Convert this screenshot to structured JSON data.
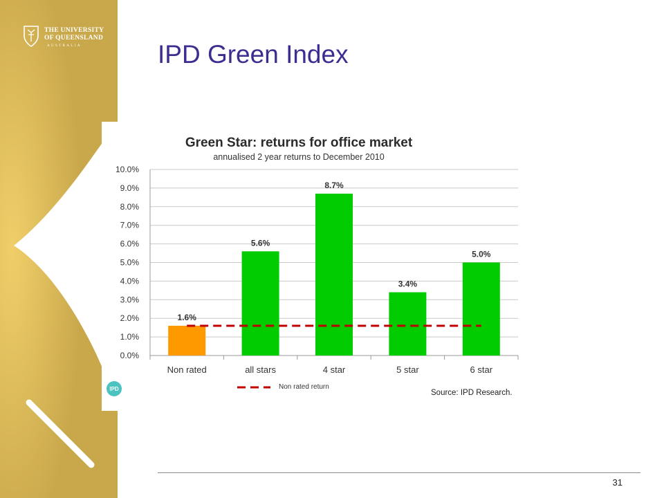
{
  "branding": {
    "logo_line1": "THE UNIVERSITY",
    "logo_line2": "OF QUEENSLAND",
    "logo_line3": "AUSTRALIA",
    "sidebar_color": "#c9a84c",
    "sidebar_highlight": "#f0cf6a"
  },
  "slide": {
    "title": "IPD Green Index",
    "page_number": "31",
    "title_color": "#3c2d91"
  },
  "chart_data": {
    "type": "bar",
    "title": "Green Star: returns for office market",
    "subtitle": "annualised 2 year returns to December 2010",
    "categories": [
      "Non rated",
      "all stars",
      "4 star",
      "5 star",
      "6 star"
    ],
    "values": [
      1.6,
      5.6,
      8.7,
      3.4,
      5.0
    ],
    "value_labels": [
      "1.6%",
      "5.6%",
      "8.7%",
      "3.4%",
      "5.0%"
    ],
    "bar_colors": [
      "#ff9900",
      "#00cc00",
      "#00cc00",
      "#00cc00",
      "#00cc00"
    ],
    "ylim": [
      0,
      10
    ],
    "yticks": [
      0,
      1,
      2,
      3,
      4,
      5,
      6,
      7,
      8,
      9,
      10
    ],
    "ytick_labels": [
      "0.0%",
      "1.0%",
      "2.0%",
      "3.0%",
      "4.0%",
      "5.0%",
      "6.0%",
      "7.0%",
      "8.0%",
      "9.0%",
      "10.0%"
    ],
    "reference_line": {
      "name": "Non rated return",
      "value": 1.6,
      "color": "#c00000",
      "style": "dashed"
    },
    "legend": {
      "position": "bottom",
      "entries": [
        "Non rated return"
      ]
    },
    "grid": true,
    "source": "Source: IPD Research.",
    "badge_text": "IPD"
  }
}
